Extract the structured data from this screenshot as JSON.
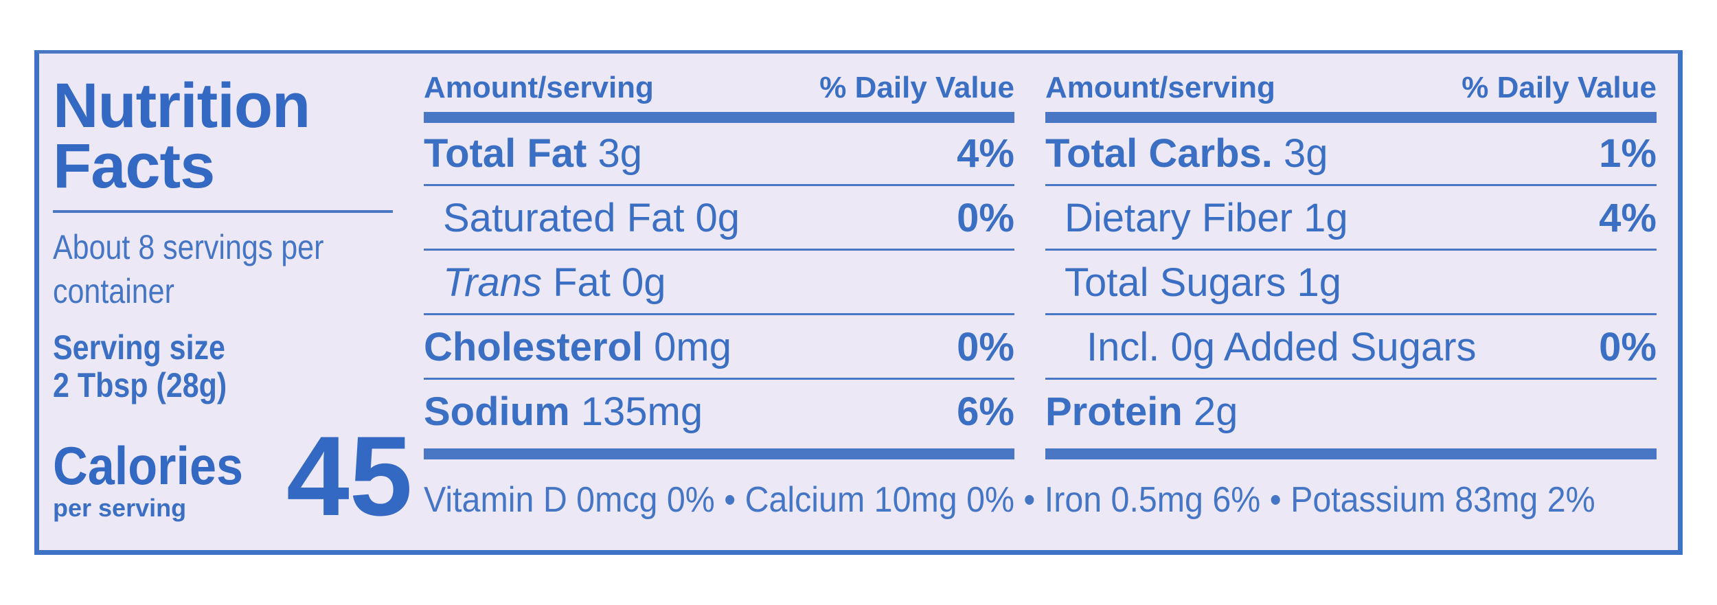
{
  "label": {
    "title": "Nutrition Facts",
    "servings_per_container": "About 8 servings per container",
    "serving_size_label": "Serving size",
    "serving_size_value": "2 Tbsp (28g)",
    "calories_label": "Calories",
    "per_serving": "per serving",
    "calories_value": "45",
    "columns": [
      {
        "header_left": "Amount/serving",
        "header_right": "% Daily Value",
        "rows": [
          {
            "bold": "Total Fat",
            "rest": " 3g",
            "pct": "4%",
            "indent": 0
          },
          {
            "bold": "",
            "rest": "Saturated Fat 0g",
            "pct": "0%",
            "indent": 1
          },
          {
            "italic": "Trans",
            "rest": " Fat 0g",
            "pct": "",
            "indent": 1
          },
          {
            "bold": "Cholesterol",
            "rest": " 0mg",
            "pct": "0%",
            "indent": 0
          },
          {
            "bold": "Sodium",
            "rest": " 135mg",
            "pct": "6%",
            "indent": 0
          }
        ]
      },
      {
        "header_left": "Amount/serving",
        "header_right": "% Daily Value",
        "rows": [
          {
            "bold": "Total Carbs.",
            "rest": " 3g",
            "pct": "1%",
            "indent": 0
          },
          {
            "bold": "",
            "rest": "Dietary Fiber 1g",
            "pct": "4%",
            "indent": 1
          },
          {
            "bold": "",
            "rest": "Total Sugars 1g",
            "pct": "",
            "indent": 1
          },
          {
            "bold": "",
            "rest": "Incl. 0g Added Sugars",
            "pct": "0%",
            "indent": 2
          },
          {
            "bold": "Protein",
            "rest": " 2g",
            "pct": "",
            "indent": 0
          }
        ]
      }
    ],
    "vitamins": "Vitamin D 0mcg 0% • Calcium 10mg 0% • Iron 0.5mg 6% • Potassium 83mg 2%"
  }
}
